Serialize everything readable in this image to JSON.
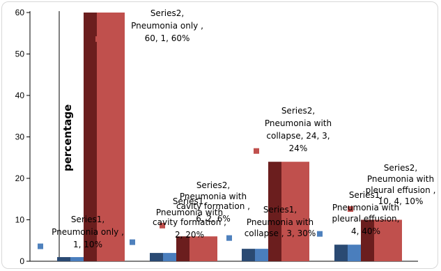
{
  "chart_data": {
    "type": "bar",
    "ylabel": "percentage",
    "ylim": [
      0,
      60
    ],
    "yticks": [
      0,
      10,
      20,
      30,
      40,
      50,
      60
    ],
    "grid": false,
    "legend": "none",
    "groups": [
      {
        "s1": 1,
        "s1_shadow": 1,
        "s2": 60,
        "s2_shadow": 60,
        "marker1": 3.6,
        "marker2": 53.6
      },
      {
        "s1": 2,
        "s1_shadow": 2,
        "s2": 6,
        "s2_shadow": 6,
        "marker1": 4.6,
        "marker2": 8.6
      },
      {
        "s1": 3,
        "s1_shadow": 3,
        "s2": 24,
        "s2_shadow": 24,
        "marker1": 5.6,
        "marker2": 26.6
      },
      {
        "s1": 4,
        "s1_shadow": 4,
        "s2": 10,
        "s2_shadow": 10,
        "marker1": 6.6,
        "marker2": 12.6
      }
    ],
    "data_labels": [
      [
        "Series1,",
        "Pneumonia only ,",
        "1, 10%"
      ],
      [
        "Series2,",
        "Pneumonia only ,",
        "60, 1, 60%"
      ],
      [
        "Series1,",
        "Pneumonia with",
        "cavity formation ,",
        "2, 20%"
      ],
      [
        "Series2,",
        "Pneumonia with",
        "cavity formation ,",
        "6, 2, 6%"
      ],
      [
        "Series1,",
        "Pneumonia with",
        "collapse , 3, 30%"
      ],
      [
        "Series2,",
        "Pneumonia with",
        "collapse, 24, 3,",
        "24%"
      ],
      [
        "Series1,",
        "Pneumonia with",
        "pleural effusion,",
        "4, 40%"
      ],
      [
        "Series2,",
        "Pneumonia with",
        "pleural effusion ,",
        "10, 4, 10%"
      ]
    ],
    "colors": {
      "s1": "#2a4a73",
      "s1_shadow": "#4a7ebd",
      "s2": "#6b1e1e",
      "s2_shadow": "#c0504d",
      "marker1": "#4f81bd",
      "marker2": "#c0504d"
    }
  }
}
